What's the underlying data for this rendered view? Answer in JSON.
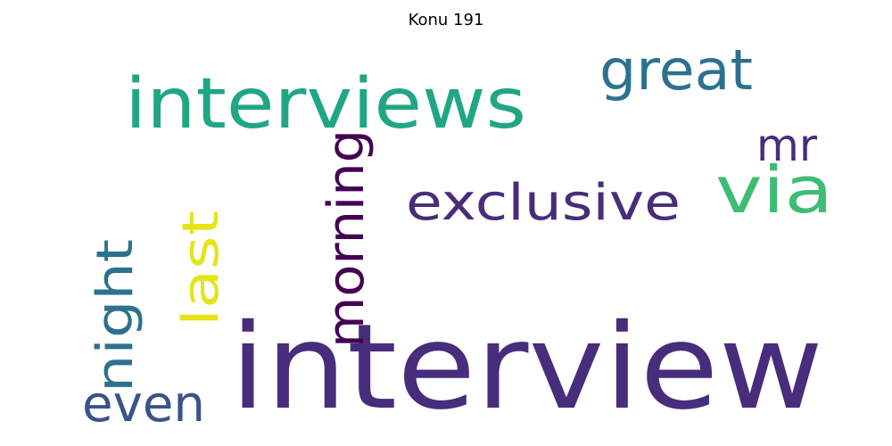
{
  "title": "Konu 191",
  "words": [
    {
      "text": "interview",
      "color": "#472d7b"
    },
    {
      "text": "interviews",
      "color": "#21a685"
    },
    {
      "text": "great",
      "color": "#2c728e"
    },
    {
      "text": "via",
      "color": "#3dbc74"
    },
    {
      "text": "mr",
      "color": "#472d7b"
    },
    {
      "text": "exclusive",
      "color": "#472d7b"
    },
    {
      "text": "morning",
      "color": "#440154"
    },
    {
      "text": "last",
      "color": "#e5e419"
    },
    {
      "text": "night",
      "color": "#2c728e"
    },
    {
      "text": "even",
      "color": "#3b528b"
    }
  ]
}
